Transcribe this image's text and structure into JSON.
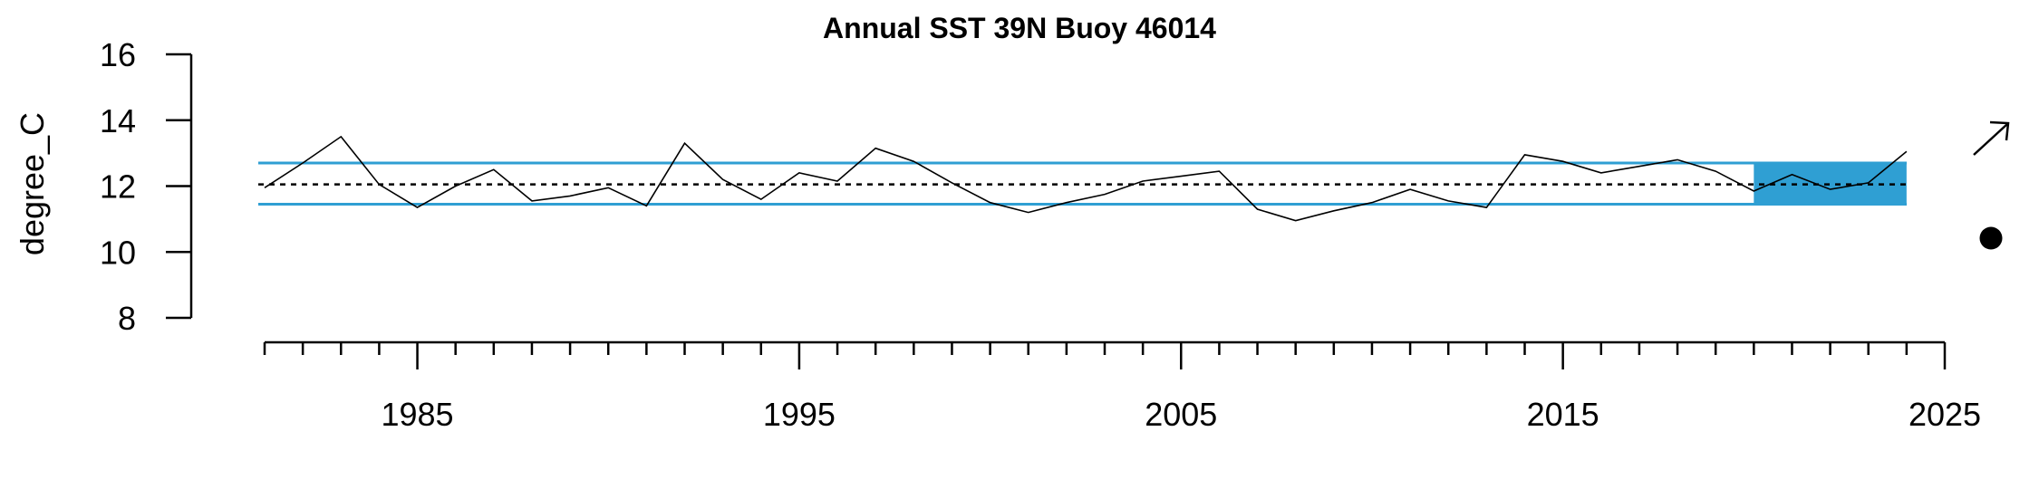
{
  "chart_data": {
    "type": "line",
    "title": "Annual SST 39N Buoy 46014",
    "xlabel": "",
    "ylabel": "degree_C",
    "xlim": [
      1981,
      2025
    ],
    "ylim": [
      8,
      16
    ],
    "y_ticks": [
      8,
      10,
      12,
      14,
      16
    ],
    "x_major_ticks": [
      1985,
      1995,
      2005,
      2015,
      2025
    ],
    "x_minor_tick_start": 1981,
    "x_minor_tick_end": 2025,
    "mean": 12.05,
    "upper_sd": 12.7,
    "lower_sd": 11.45,
    "recent_period": [
      2020,
      2024
    ],
    "trend_symbol": "up-arrow",
    "mean_symbol": "filled-circle",
    "colors": {
      "band": "#2f9fd3",
      "series": "#000000",
      "mean_line": "#000000"
    },
    "series": [
      {
        "x": [
          1981,
          1982,
          1983,
          1984,
          1985,
          1986,
          1987,
          1988,
          1989,
          1990,
          1991,
          1992,
          1993,
          1994,
          1995,
          1996,
          1997,
          1998,
          1999,
          2000,
          2001,
          2002,
          2003,
          2004,
          2005,
          2006,
          2007,
          2008,
          2009,
          2010,
          2011,
          2012,
          2013,
          2014,
          2015,
          2016,
          2017,
          2018,
          2019,
          2020,
          2021,
          2022,
          2023,
          2024
        ],
        "values": [
          11.95,
          12.7,
          13.5,
          12.05,
          11.35,
          12.0,
          12.5,
          11.55,
          11.7,
          11.95,
          11.4,
          13.3,
          12.2,
          11.6,
          12.4,
          12.15,
          13.15,
          12.75,
          12.1,
          11.5,
          11.2,
          11.5,
          11.75,
          12.15,
          12.3,
          12.45,
          11.3,
          10.95,
          11.25,
          11.5,
          11.9,
          11.55,
          11.35,
          12.95,
          12.75,
          12.4,
          12.6,
          12.8,
          12.45,
          11.85,
          12.35,
          11.9,
          12.1,
          13.05
        ]
      }
    ]
  }
}
